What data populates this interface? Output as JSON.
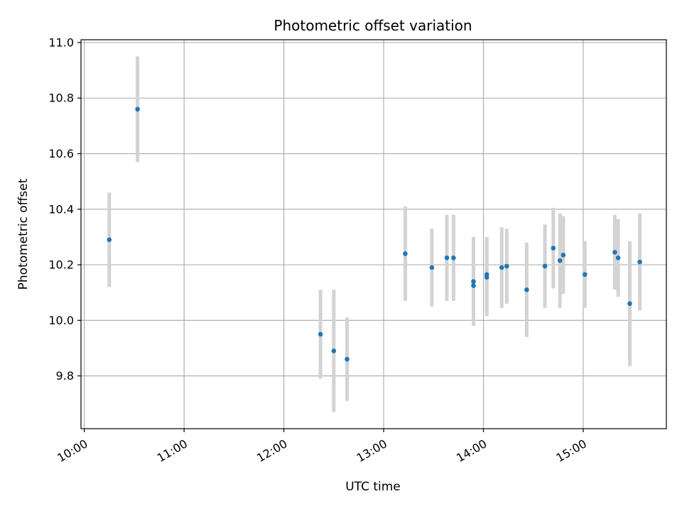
{
  "chart_data": {
    "type": "scatter",
    "title": "Photometric offset variation",
    "xlabel": "UTC time",
    "ylabel": "Photometric offset",
    "x_tick_labels": [
      "10:00",
      "11:00",
      "12:00",
      "13:00",
      "14:00",
      "15:00"
    ],
    "y_tick_labels": [
      "9.8",
      "10.0",
      "10.2",
      "10.4",
      "10.6",
      "10.8",
      "11.0"
    ],
    "xlim": [
      "09:58",
      "15:50"
    ],
    "ylim": [
      9.61,
      11.01
    ],
    "grid": true,
    "errorbar_color": "#d3d3d3",
    "marker_color": "#1f77b4",
    "points": [
      {
        "time": "10:15",
        "y": 10.29,
        "err": 0.17
      },
      {
        "time": "10:32",
        "y": 10.76,
        "err": 0.19
      },
      {
        "time": "12:22",
        "y": 9.95,
        "err": 0.16
      },
      {
        "time": "12:30",
        "y": 9.89,
        "err": 0.22
      },
      {
        "time": "12:38",
        "y": 9.86,
        "err": 0.15
      },
      {
        "time": "13:13",
        "y": 10.24,
        "err": 0.17
      },
      {
        "time": "13:29",
        "y": 10.19,
        "err": 0.14
      },
      {
        "time": "13:38",
        "y": 10.225,
        "err": 0.155
      },
      {
        "time": "13:42",
        "y": 10.225,
        "err": 0.155
      },
      {
        "time": "13:54",
        "y": 10.14,
        "err": 0.16
      },
      {
        "time": "13:54",
        "y": 10.125,
        "err": 0.145
      },
      {
        "time": "14:02",
        "y": 10.165,
        "err": 0.135
      },
      {
        "time": "14:02",
        "y": 10.155,
        "err": 0.14
      },
      {
        "time": "14:11",
        "y": 10.19,
        "err": 0.145
      },
      {
        "time": "14:14",
        "y": 10.195,
        "err": 0.135
      },
      {
        "time": "14:26",
        "y": 10.11,
        "err": 0.17
      },
      {
        "time": "14:37",
        "y": 10.195,
        "err": 0.15
      },
      {
        "time": "14:42",
        "y": 10.26,
        "err": 0.145
      },
      {
        "time": "14:46",
        "y": 10.215,
        "err": 0.17
      },
      {
        "time": "14:48",
        "y": 10.235,
        "err": 0.14
      },
      {
        "time": "15:01",
        "y": 10.165,
        "err": 0.12
      },
      {
        "time": "15:19",
        "y": 10.245,
        "err": 0.135
      },
      {
        "time": "15:21",
        "y": 10.225,
        "err": 0.14
      },
      {
        "time": "15:28",
        "y": 10.06,
        "err": 0.225
      },
      {
        "time": "15:34",
        "y": 10.21,
        "err": 0.175
      }
    ]
  }
}
